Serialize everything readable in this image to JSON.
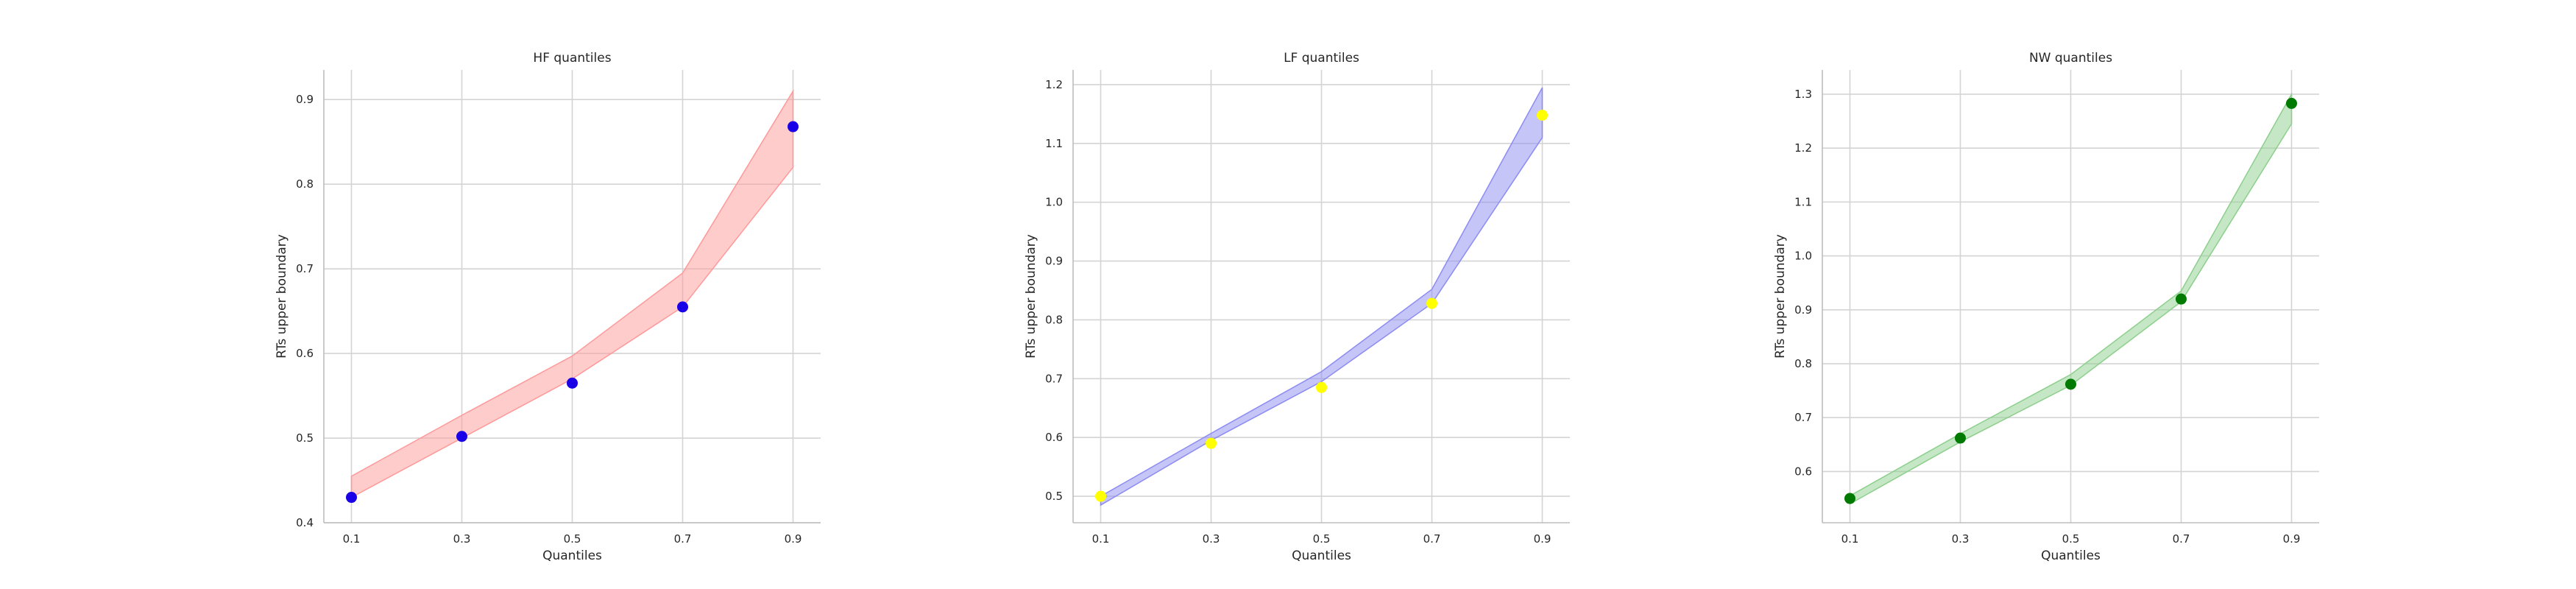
{
  "chart_data": [
    {
      "type": "line",
      "title": "HF quantiles",
      "xlabel": "Quantiles",
      "ylabel": "RTs upper boundary",
      "x": [
        0.1,
        0.3,
        0.5,
        0.7,
        0.9
      ],
      "xticks": [
        "0.1",
        "0.3",
        "0.5",
        "0.7",
        "0.9"
      ],
      "xlim": [
        0.05,
        0.95
      ],
      "ylim": [
        0.4,
        0.935
      ],
      "yticks": [
        "0.4",
        "0.5",
        "0.6",
        "0.7",
        "0.8",
        "0.9"
      ],
      "grid": true,
      "band": {
        "color": "#ff9999",
        "lower": [
          0.43,
          0.5,
          0.57,
          0.655,
          0.82
        ],
        "upper": [
          0.455,
          0.527,
          0.597,
          0.695,
          0.91
        ]
      },
      "points": {
        "color": "#1a00e6",
        "values": [
          0.43,
          0.502,
          0.565,
          0.655,
          0.868
        ]
      }
    },
    {
      "type": "line",
      "title": "LF quantiles",
      "xlabel": "Quantiles",
      "ylabel": "RTs upper boundary",
      "x": [
        0.1,
        0.3,
        0.5,
        0.7,
        0.9
      ],
      "xticks": [
        "0.1",
        "0.3",
        "0.5",
        "0.7",
        "0.9"
      ],
      "xlim": [
        0.05,
        0.95
      ],
      "ylim": [
        0.455,
        1.225
      ],
      "yticks": [
        "0.5",
        "0.6",
        "0.7",
        "0.8",
        "0.9",
        "1.0",
        "1.1",
        "1.2"
      ],
      "grid": true,
      "band": {
        "color": "#8c8cf2",
        "lower": [
          0.485,
          0.595,
          0.695,
          0.828,
          1.11
        ],
        "upper": [
          0.5,
          0.607,
          0.712,
          0.852,
          1.195
        ]
      },
      "points": {
        "color": "#ffff00",
        "values": [
          0.5,
          0.59,
          0.685,
          0.828,
          1.148
        ]
      }
    },
    {
      "type": "line",
      "title": "NW quantiles",
      "xlabel": "Quantiles",
      "ylabel": "RTs upper boundary",
      "x": [
        0.1,
        0.3,
        0.5,
        0.7,
        0.9
      ],
      "xticks": [
        "0.1",
        "0.3",
        "0.5",
        "0.7",
        "0.9"
      ],
      "xlim": [
        0.05,
        0.95
      ],
      "ylim": [
        0.505,
        1.345
      ],
      "yticks": [
        "0.6",
        "0.7",
        "0.8",
        "0.9",
        "1.0",
        "1.1",
        "1.2",
        "1.3"
      ],
      "grid": true,
      "band": {
        "color": "#8ccf8c",
        "lower": [
          0.54,
          0.655,
          0.76,
          0.915,
          1.245
        ],
        "upper": [
          0.555,
          0.67,
          0.78,
          0.935,
          1.3
        ]
      },
      "points": {
        "color": "#007a00",
        "values": [
          0.55,
          0.662,
          0.762,
          0.92,
          1.283
        ]
      }
    }
  ]
}
